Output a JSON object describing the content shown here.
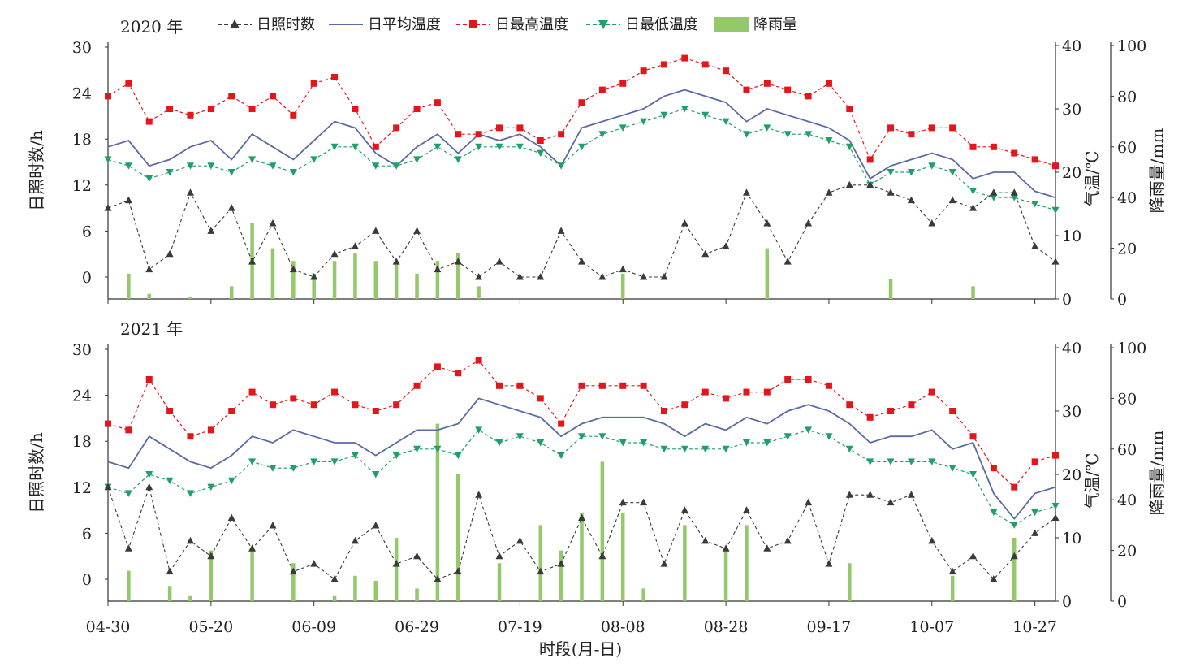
{
  "xlabel": "时段(月-日)",
  "x_ticks": [
    "04-30",
    "05-20",
    "06-09",
    "06-29",
    "07-19",
    "08-08",
    "08-28",
    "09-17",
    "10-07",
    "10-27"
  ],
  "ylabel_left": "日照时数/h",
  "ylabel_temp": "气温/℃",
  "ylabel_rain": "降雨量/mm",
  "yticks_sun": [
    0,
    6,
    12,
    18,
    24,
    30
  ],
  "yticks_temp": [
    0,
    10,
    20,
    30,
    40
  ],
  "yticks_rain": [
    0,
    20,
    40,
    60,
    80,
    100
  ],
  "legend": [
    {
      "key": "sun",
      "label": "日照时数",
      "color": "#3a3a3a"
    },
    {
      "key": "avg",
      "label": "日平均温度",
      "color": "#5b6aa3"
    },
    {
      "key": "max",
      "label": "日最高温度",
      "color": "#e3161b"
    },
    {
      "key": "min",
      "label": "日最低温度",
      "color": "#1fa06a"
    },
    {
      "key": "rain",
      "label": "降雨量",
      "color": "#93c96a"
    }
  ],
  "chart_data": [
    {
      "type": "line",
      "year_label": "2020 年",
      "x_days": [
        0,
        4,
        8,
        12,
        16,
        20,
        24,
        28,
        32,
        36,
        40,
        44,
        48,
        52,
        56,
        60,
        64,
        68,
        72,
        76,
        80,
        84,
        88,
        92,
        96,
        100,
        104,
        108,
        112,
        116,
        120,
        124,
        128,
        132,
        136,
        140,
        144,
        148,
        152,
        156,
        160,
        164,
        168,
        172,
        176,
        180,
        184
      ],
      "series": [
        {
          "key": "sun",
          "name": "日照时数",
          "values": [
            9,
            10,
            1,
            3,
            11,
            6,
            9,
            2,
            7,
            1,
            0,
            3,
            4,
            6,
            2,
            6,
            1,
            2,
            0,
            2,
            0,
            0,
            6,
            2,
            0,
            1,
            0,
            0,
            7,
            3,
            4,
            11,
            7,
            2,
            7,
            11,
            12,
            12,
            11,
            10,
            7,
            10,
            9,
            11,
            11,
            4,
            2
          ]
        },
        {
          "key": "avg",
          "name": "日平均温度",
          "values": [
            24,
            25,
            21,
            22,
            24,
            25,
            22,
            26,
            24,
            22,
            25,
            28,
            27,
            23,
            21,
            24,
            26,
            23,
            26,
            25,
            26,
            24,
            21,
            27,
            28,
            29,
            30,
            32,
            33,
            32,
            31,
            28,
            30,
            29,
            28,
            27,
            25,
            19,
            21,
            22,
            23,
            22,
            19,
            20,
            20,
            17,
            16
          ]
        },
        {
          "key": "max",
          "name": "日最高温度",
          "values": [
            32,
            34,
            28,
            30,
            29,
            30,
            32,
            30,
            32,
            29,
            34,
            35,
            30,
            24,
            27,
            30,
            31,
            26,
            26,
            27,
            27,
            25,
            26,
            31,
            33,
            34,
            36,
            37,
            38,
            37,
            36,
            33,
            34,
            33,
            32,
            34,
            30,
            22,
            27,
            26,
            27,
            27,
            24,
            24,
            23,
            22,
            21
          ]
        },
        {
          "key": "min",
          "name": "日最低温度",
          "values": [
            22,
            21,
            19,
            20,
            21,
            21,
            20,
            22,
            21,
            20,
            22,
            24,
            24,
            21,
            21,
            22,
            24,
            22,
            24,
            24,
            24,
            23,
            21,
            24,
            26,
            27,
            28,
            29,
            30,
            29,
            28,
            26,
            27,
            26,
            26,
            25,
            24,
            18,
            20,
            20,
            21,
            20,
            17,
            16,
            16,
            15,
            14
          ]
        },
        {
          "key": "rain",
          "name": "降雨量",
          "values": [
            0,
            10,
            2,
            0,
            1,
            0,
            5,
            30,
            20,
            15,
            10,
            15,
            18,
            15,
            14,
            10,
            15,
            18,
            5,
            0,
            0,
            0,
            0,
            0,
            0,
            10,
            0,
            0,
            0,
            0,
            0,
            0,
            20,
            0,
            0,
            0,
            0,
            0,
            8,
            0,
            0,
            0,
            5,
            0,
            0,
            0,
            0
          ]
        }
      ]
    },
    {
      "type": "line",
      "year_label": "2021 年",
      "x_days": [
        0,
        4,
        8,
        12,
        16,
        20,
        24,
        28,
        32,
        36,
        40,
        44,
        48,
        52,
        56,
        60,
        64,
        68,
        72,
        76,
        80,
        84,
        88,
        92,
        96,
        100,
        104,
        108,
        112,
        116,
        120,
        124,
        128,
        132,
        136,
        140,
        144,
        148,
        152,
        156,
        160,
        164,
        168,
        172,
        176,
        180,
        184
      ],
      "series": [
        {
          "key": "sun",
          "name": "日照时数",
          "values": [
            12,
            4,
            12,
            1,
            5,
            3,
            8,
            4,
            7,
            1,
            2,
            0,
            5,
            7,
            2,
            3,
            0,
            1,
            11,
            3,
            5,
            1,
            2,
            8,
            3,
            10,
            10,
            2,
            9,
            5,
            4,
            9,
            4,
            5,
            10,
            2,
            11,
            11,
            10,
            11,
            5,
            1,
            3,
            0,
            3,
            6,
            8
          ]
        },
        {
          "key": "avg",
          "name": "日平均温度",
          "values": [
            22,
            21,
            26,
            24,
            22,
            21,
            23,
            26,
            25,
            27,
            26,
            25,
            25,
            23,
            25,
            27,
            27,
            28,
            32,
            31,
            30,
            29,
            26,
            28,
            29,
            29,
            29,
            28,
            26,
            28,
            27,
            29,
            28,
            30,
            31,
            30,
            28,
            25,
            26,
            26,
            27,
            24,
            25,
            17,
            13,
            17,
            18
          ]
        },
        {
          "key": "max",
          "name": "日最高温度",
          "values": [
            28,
            27,
            35,
            30,
            26,
            27,
            30,
            33,
            31,
            32,
            31,
            33,
            31,
            30,
            31,
            34,
            37,
            36,
            38,
            34,
            34,
            32,
            28,
            34,
            34,
            34,
            34,
            30,
            31,
            33,
            32,
            33,
            33,
            35,
            35,
            34,
            31,
            29,
            30,
            31,
            33,
            30,
            26,
            21,
            18,
            22,
            23
          ]
        },
        {
          "key": "min",
          "name": "日最低温度",
          "values": [
            18,
            17,
            20,
            19,
            17,
            18,
            19,
            22,
            21,
            21,
            22,
            22,
            23,
            20,
            23,
            24,
            24,
            23,
            27,
            25,
            26,
            25,
            23,
            26,
            26,
            25,
            25,
            24,
            24,
            24,
            24,
            25,
            25,
            26,
            27,
            26,
            24,
            22,
            22,
            22,
            22,
            21,
            20,
            14,
            12,
            14,
            15
          ]
        },
        {
          "key": "rain",
          "name": "降雨量",
          "values": [
            0,
            12,
            0,
            6,
            2,
            20,
            0,
            20,
            0,
            15,
            0,
            2,
            10,
            8,
            25,
            5,
            70,
            50,
            0,
            15,
            0,
            30,
            20,
            35,
            55,
            35,
            5,
            0,
            30,
            0,
            20,
            30,
            0,
            0,
            0,
            0,
            15,
            0,
            0,
            0,
            0,
            10,
            0,
            0,
            25,
            0,
            0
          ]
        }
      ]
    }
  ]
}
